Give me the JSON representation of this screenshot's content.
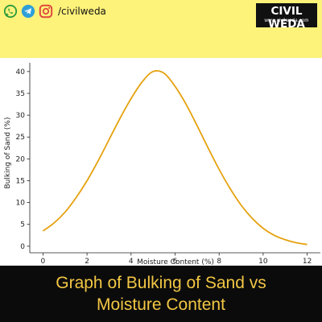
{
  "social": {
    "handle": "/civilweda",
    "icons": [
      "whatsapp-icon",
      "telegram-icon",
      "instagram-icon"
    ]
  },
  "brand": {
    "name": "CIVIL WEDA",
    "url": "www.civilweda.com"
  },
  "caption": {
    "line1": "Graph of Bulking of Sand vs",
    "line2": "Moisture Content"
  },
  "colors": {
    "banner": "#fdf27a",
    "curve": "#e6a20f",
    "caption_bg": "#0b0b0b",
    "caption_text": "#f2c744"
  },
  "chart_data": {
    "type": "line",
    "title": "",
    "xlabel": "Moisture Content (%)",
    "ylabel": "Bulking of Sand (%)",
    "xlim": [
      -0.6,
      12.6
    ],
    "ylim": [
      -1.5,
      42
    ],
    "xticks": [
      0,
      2,
      4,
      6,
      8,
      10,
      12
    ],
    "yticks": [
      0,
      5,
      10,
      15,
      20,
      25,
      30,
      35,
      40
    ],
    "grid": false,
    "legend": "none",
    "series": [
      {
        "x": [
          0,
          0.5,
          1,
          1.5,
          2,
          2.5,
          3,
          3.5,
          4,
          4.5,
          5,
          5.5,
          6,
          6.5,
          7,
          7.5,
          8,
          8.5,
          9,
          9.5,
          10,
          10.5,
          11,
          11.5,
          12
        ],
        "values": [
          3.5,
          5.3,
          7.8,
          11.1,
          15.0,
          19.5,
          24.4,
          29.3,
          33.8,
          37.6,
          40.0,
          39.6,
          36.6,
          32.5,
          27.6,
          22.5,
          17.6,
          13.2,
          9.4,
          6.4,
          4.1,
          2.5,
          1.5,
          0.8,
          0.4
        ]
      }
    ]
  }
}
